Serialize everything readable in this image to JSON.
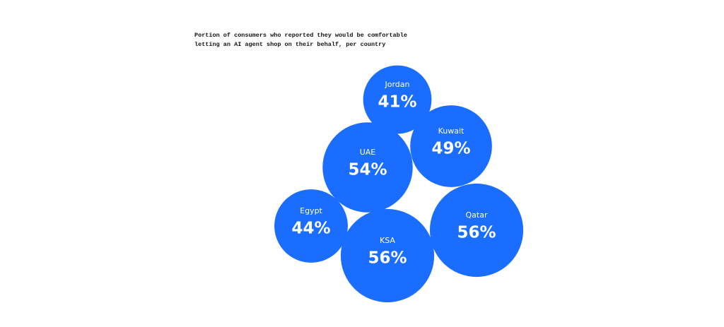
{
  "chart_data": {
    "type": "bubble",
    "title": "Portion of consumers who reported they would be comfortable letting an AI agent shop on their behalf, per country",
    "categories": [
      "Jordan",
      "Kuwait",
      "UAE",
      "Egypt",
      "KSA",
      "Qatar"
    ],
    "values": [
      41,
      49,
      54,
      44,
      56,
      56
    ],
    "value_labels": [
      "41%",
      "49%",
      "54%",
      "44%",
      "56%",
      "56%"
    ],
    "color": "#1a6dff"
  }
}
